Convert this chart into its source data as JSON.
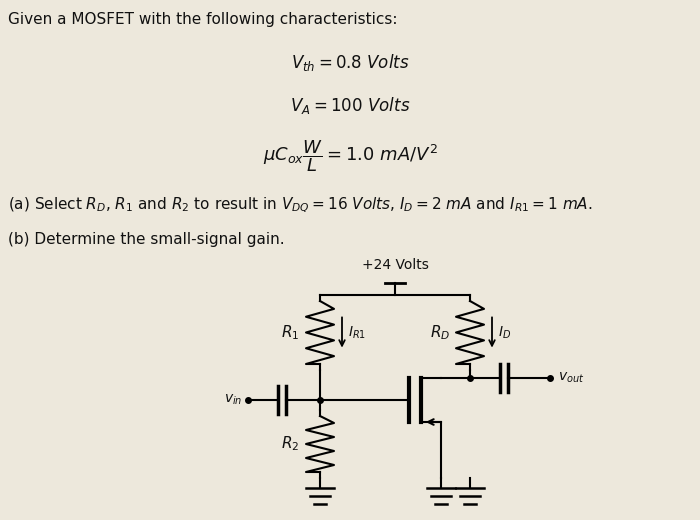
{
  "title_text": "Given a MOSFET with the following characteristics:",
  "eq1_main": "$V_{th} = 0.8\\ Volts$",
  "eq2_main": "$V_A = 100\\ Volts$",
  "eq3_line1": "$\\mu C_{ox}\\dfrac{W}{L} = 1.0\\ mA/V^2$",
  "part_a": "(a) Select $R_D$, $R_1$ and $R_2$ to result in $V_{DQ} = 16\\ Volts$, $I_D = 2\\ mA$ and $I_{R1} = 1\\ mA$.",
  "part_b": "(b) Determine the small-signal gain.",
  "supply_label": "+24 Volts",
  "r1_label": "$R_1$",
  "rd_label": "$R_D$",
  "r2_label": "$R_2$",
  "ir1_label": "$I_{R1}$",
  "id_label": "$I_D$",
  "vin_label": "$v_{in}$",
  "vout_label": "$v_{out}$",
  "bg_color": "#ede8dc",
  "text_color": "#111111"
}
